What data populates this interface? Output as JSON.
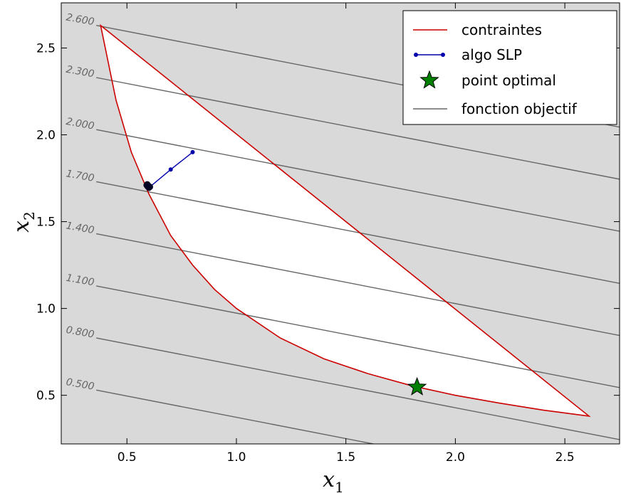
{
  "chart_data": {
    "type": "line",
    "title": "",
    "xlabel": "x",
    "xlabel_sub": "1",
    "ylabel": "x",
    "ylabel_sub": "2",
    "xlim": [
      0.2,
      2.75
    ],
    "ylim": [
      0.22,
      2.76
    ],
    "xticks": [
      0.5,
      1.0,
      1.5,
      2.0,
      2.5
    ],
    "yticks": [
      0.5,
      1.0,
      1.5,
      2.0,
      2.5
    ],
    "xtick_labels": [
      "0.5",
      "1.0",
      "1.5",
      "2.0",
      "2.5"
    ],
    "ytick_labels": [
      "0.5",
      "1.0",
      "1.5",
      "2.0",
      "2.5"
    ],
    "legend_position": "top-right",
    "grid": false,
    "colors": {
      "background": "#d9d9d9",
      "feasible_region": "#ffffff",
      "constraints": "#cc0000",
      "slp": "#0000aa",
      "slp_cluster": "#000022",
      "optimal": "#008000",
      "objective": "#666666"
    },
    "constraints": {
      "name": "contraintes",
      "vertices": [
        {
          "x": 0.38,
          "y": 2.63
        },
        {
          "x": 2.61,
          "y": 0.38
        }
      ],
      "lower_boundary": [
        {
          "x": 0.38,
          "y": 2.63
        },
        {
          "x": 0.45,
          "y": 2.2
        },
        {
          "x": 0.52,
          "y": 1.9
        },
        {
          "x": 0.6,
          "y": 1.66
        },
        {
          "x": 0.7,
          "y": 1.42
        },
        {
          "x": 0.8,
          "y": 1.25
        },
        {
          "x": 0.9,
          "y": 1.11
        },
        {
          "x": 1.0,
          "y": 1.0
        },
        {
          "x": 1.2,
          "y": 0.83
        },
        {
          "x": 1.4,
          "y": 0.71
        },
        {
          "x": 1.6,
          "y": 0.625
        },
        {
          "x": 1.8,
          "y": 0.555
        },
        {
          "x": 2.0,
          "y": 0.5
        },
        {
          "x": 2.2,
          "y": 0.455
        },
        {
          "x": 2.4,
          "y": 0.415
        },
        {
          "x": 2.61,
          "y": 0.38
        }
      ]
    },
    "slp": {
      "name": "algo SLP",
      "points": [
        {
          "x": 0.8,
          "y": 1.9
        },
        {
          "x": 0.7,
          "y": 1.8
        },
        {
          "x": 0.605,
          "y": 1.7
        },
        {
          "x": 0.6,
          "y": 1.695
        },
        {
          "x": 0.595,
          "y": 1.702
        },
        {
          "x": 0.59,
          "y": 1.71
        },
        {
          "x": 0.593,
          "y": 1.715
        },
        {
          "x": 0.6,
          "y": 1.705
        }
      ]
    },
    "optimal": {
      "name": "point optimal",
      "x": 1.825,
      "y": 0.547
    },
    "objective": {
      "name": "fonction objectif",
      "levels": [
        {
          "label": "0.500",
          "c": 0.5
        },
        {
          "label": "0.800",
          "c": 0.8
        },
        {
          "label": "1.100",
          "c": 1.1
        },
        {
          "label": "1.400",
          "c": 1.4
        },
        {
          "label": "1.700",
          "c": 1.7
        },
        {
          "label": "2.000",
          "c": 2.0
        },
        {
          "label": "2.300",
          "c": 2.3
        },
        {
          "label": "2.600",
          "c": 2.6
        }
      ],
      "slope": -0.245
    }
  }
}
